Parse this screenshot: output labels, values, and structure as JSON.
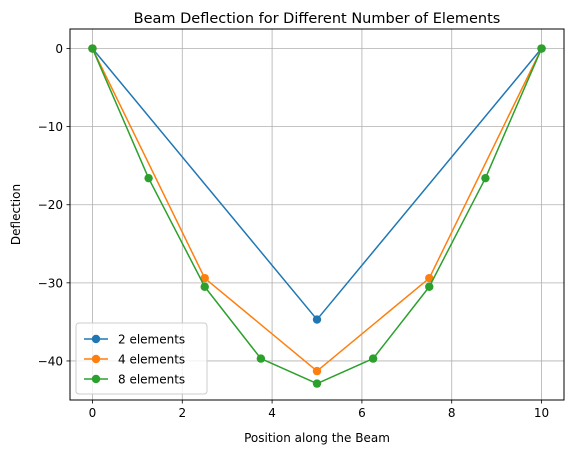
{
  "chart_data": {
    "type": "line",
    "title": "Beam Deflection for Different Number of Elements",
    "xlabel": "Position along the Beam",
    "ylabel": "Deflection",
    "xlim": [
      -0.5,
      10.5
    ],
    "ylim": [
      -45.0,
      2.5
    ],
    "xticks": [
      0,
      2,
      4,
      6,
      8,
      10
    ],
    "yticks": [
      0,
      -10,
      -20,
      -30,
      -40
    ],
    "xtick_labels": [
      "0",
      "2",
      "4",
      "6",
      "8",
      "10"
    ],
    "ytick_labels": [
      "0",
      "−10",
      "−20",
      "−30",
      "−40"
    ],
    "grid": true,
    "legend_position": "lower left",
    "series": [
      {
        "name": "2 elements",
        "color": "#1f77b4",
        "x": [
          0,
          5,
          10
        ],
        "y": [
          0,
          -34.7,
          0
        ]
      },
      {
        "name": "4 elements",
        "color": "#ff7f0e",
        "x": [
          0,
          2.5,
          5,
          7.5,
          10
        ],
        "y": [
          0,
          -29.4,
          -41.3,
          -29.4,
          0
        ]
      },
      {
        "name": "8 elements",
        "color": "#2ca02c",
        "x": [
          0,
          1.25,
          2.5,
          3.75,
          5,
          6.25,
          7.5,
          8.75,
          10
        ],
        "y": [
          0,
          -16.6,
          -30.5,
          -39.7,
          -42.9,
          -39.7,
          -30.5,
          -16.6,
          0
        ]
      }
    ]
  }
}
